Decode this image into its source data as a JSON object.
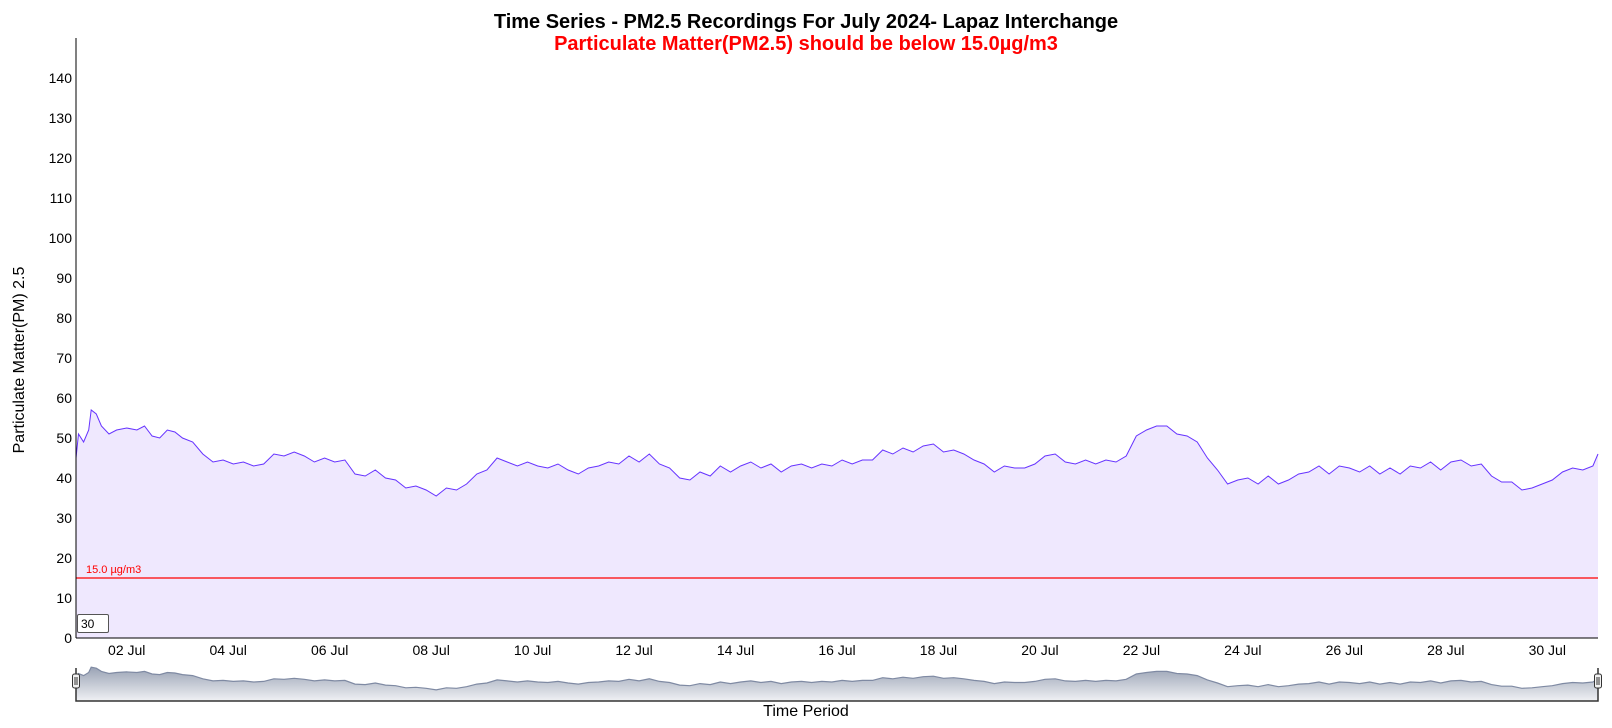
{
  "chart_data": {
    "type": "area",
    "title": "Time Series - PM2.5 Recordings For July 2024- Lapaz Interchange",
    "subtitle": "Particulate Matter(PM2.5) should be below 15.0µg/m3",
    "xlabel": "Time Period",
    "ylabel": "Particulate Matter(PM) 2.5",
    "ylim": [
      0,
      150
    ],
    "y_ticks": [
      "0",
      "10",
      "20",
      "30",
      "40",
      "50",
      "60",
      "70",
      "80",
      "90",
      "100",
      "110",
      "120",
      "130",
      "140"
    ],
    "x_range_days": [
      1,
      31
    ],
    "x_ticks": [
      {
        "day": 2,
        "label": "02 Jul"
      },
      {
        "day": 4,
        "label": "04 Jul"
      },
      {
        "day": 6,
        "label": "06 Jul"
      },
      {
        "day": 8,
        "label": "08 Jul"
      },
      {
        "day": 10,
        "label": "10 Jul"
      },
      {
        "day": 12,
        "label": "12 Jul"
      },
      {
        "day": 14,
        "label": "14 Jul"
      },
      {
        "day": 16,
        "label": "16 Jul"
      },
      {
        "day": 18,
        "label": "18 Jul"
      },
      {
        "day": 20,
        "label": "20 Jul"
      },
      {
        "day": 22,
        "label": "22 Jul"
      },
      {
        "day": 24,
        "label": "24 Jul"
      },
      {
        "day": 26,
        "label": "26 Jul"
      },
      {
        "day": 28,
        "label": "28 Jul"
      },
      {
        "day": 30,
        "label": "30 Jul"
      }
    ],
    "threshold": {
      "value": 15.0,
      "label": "15.0 µg/m3",
      "color": "#ff0000"
    },
    "series": [
      {
        "color": "#6633ff",
        "fill": "#efe8fe",
        "points": [
          [
            1.0,
            45
          ],
          [
            1.05,
            51
          ],
          [
            1.15,
            49
          ],
          [
            1.25,
            52
          ],
          [
            1.3,
            57
          ],
          [
            1.4,
            56
          ],
          [
            1.5,
            53
          ],
          [
            1.65,
            51
          ],
          [
            1.8,
            52
          ],
          [
            2.0,
            52.5
          ],
          [
            2.2,
            52
          ],
          [
            2.35,
            53
          ],
          [
            2.5,
            50.5
          ],
          [
            2.65,
            50
          ],
          [
            2.8,
            52
          ],
          [
            2.95,
            51.5
          ],
          [
            3.1,
            50
          ],
          [
            3.3,
            49
          ],
          [
            3.5,
            46
          ],
          [
            3.7,
            44
          ],
          [
            3.9,
            44.5
          ],
          [
            4.1,
            43.5
          ],
          [
            4.3,
            44
          ],
          [
            4.5,
            43
          ],
          [
            4.7,
            43.5
          ],
          [
            4.9,
            46
          ],
          [
            5.1,
            45.5
          ],
          [
            5.3,
            46.5
          ],
          [
            5.5,
            45.5
          ],
          [
            5.7,
            44
          ],
          [
            5.9,
            45
          ],
          [
            6.1,
            44
          ],
          [
            6.3,
            44.5
          ],
          [
            6.5,
            41
          ],
          [
            6.7,
            40.5
          ],
          [
            6.9,
            42
          ],
          [
            7.1,
            40
          ],
          [
            7.3,
            39.5
          ],
          [
            7.5,
            37.5
          ],
          [
            7.7,
            38
          ],
          [
            7.9,
            37
          ],
          [
            8.1,
            35.5
          ],
          [
            8.3,
            37.5
          ],
          [
            8.5,
            37
          ],
          [
            8.7,
            38.5
          ],
          [
            8.9,
            41
          ],
          [
            9.1,
            42
          ],
          [
            9.3,
            45
          ],
          [
            9.5,
            44
          ],
          [
            9.7,
            43
          ],
          [
            9.9,
            44
          ],
          [
            10.1,
            43
          ],
          [
            10.3,
            42.5
          ],
          [
            10.5,
            43.5
          ],
          [
            10.7,
            42
          ],
          [
            10.9,
            41
          ],
          [
            11.1,
            42.5
          ],
          [
            11.3,
            43
          ],
          [
            11.5,
            44
          ],
          [
            11.7,
            43.5
          ],
          [
            11.9,
            45.5
          ],
          [
            12.1,
            44
          ],
          [
            12.3,
            46
          ],
          [
            12.5,
            43.5
          ],
          [
            12.7,
            42.5
          ],
          [
            12.9,
            40
          ],
          [
            13.1,
            39.5
          ],
          [
            13.3,
            41.5
          ],
          [
            13.5,
            40.5
          ],
          [
            13.7,
            43
          ],
          [
            13.9,
            41.5
          ],
          [
            14.1,
            43
          ],
          [
            14.3,
            44
          ],
          [
            14.5,
            42.5
          ],
          [
            14.7,
            43.5
          ],
          [
            14.9,
            41.5
          ],
          [
            15.1,
            43
          ],
          [
            15.3,
            43.5
          ],
          [
            15.5,
            42.5
          ],
          [
            15.7,
            43.5
          ],
          [
            15.9,
            43
          ],
          [
            16.1,
            44.5
          ],
          [
            16.3,
            43.5
          ],
          [
            16.5,
            44.5
          ],
          [
            16.7,
            44.5
          ],
          [
            16.9,
            47
          ],
          [
            17.1,
            46
          ],
          [
            17.3,
            47.5
          ],
          [
            17.5,
            46.5
          ],
          [
            17.7,
            48
          ],
          [
            17.9,
            48.5
          ],
          [
            18.1,
            46.5
          ],
          [
            18.3,
            47
          ],
          [
            18.5,
            46
          ],
          [
            18.7,
            44.5
          ],
          [
            18.9,
            43.5
          ],
          [
            19.1,
            41.5
          ],
          [
            19.3,
            43
          ],
          [
            19.5,
            42.5
          ],
          [
            19.7,
            42.5
          ],
          [
            19.9,
            43.5
          ],
          [
            20.1,
            45.5
          ],
          [
            20.3,
            46
          ],
          [
            20.5,
            44
          ],
          [
            20.7,
            43.5
          ],
          [
            20.9,
            44.5
          ],
          [
            21.1,
            43.5
          ],
          [
            21.3,
            44.5
          ],
          [
            21.5,
            44
          ],
          [
            21.7,
            45.5
          ],
          [
            21.9,
            50.5
          ],
          [
            22.1,
            52
          ],
          [
            22.3,
            53
          ],
          [
            22.5,
            53
          ],
          [
            22.7,
            51
          ],
          [
            22.9,
            50.5
          ],
          [
            23.1,
            49
          ],
          [
            23.3,
            45
          ],
          [
            23.5,
            42
          ],
          [
            23.7,
            38.5
          ],
          [
            23.9,
            39.5
          ],
          [
            24.1,
            40
          ],
          [
            24.3,
            38.5
          ],
          [
            24.5,
            40.5
          ],
          [
            24.7,
            38.5
          ],
          [
            24.9,
            39.5
          ],
          [
            25.1,
            41
          ],
          [
            25.3,
            41.5
          ],
          [
            25.5,
            43
          ],
          [
            25.7,
            41
          ],
          [
            25.9,
            43
          ],
          [
            26.1,
            42.5
          ],
          [
            26.3,
            41.5
          ],
          [
            26.5,
            43
          ],
          [
            26.7,
            41
          ],
          [
            26.9,
            42.5
          ],
          [
            27.1,
            41
          ],
          [
            27.3,
            43
          ],
          [
            27.5,
            42.5
          ],
          [
            27.7,
            44
          ],
          [
            27.9,
            42
          ],
          [
            28.1,
            44
          ],
          [
            28.3,
            44.5
          ],
          [
            28.5,
            43
          ],
          [
            28.7,
            43.5
          ],
          [
            28.9,
            40.5
          ],
          [
            29.1,
            39
          ],
          [
            29.3,
            39
          ],
          [
            29.5,
            37
          ],
          [
            29.7,
            37.5
          ],
          [
            29.9,
            38.5
          ],
          [
            30.1,
            39.5
          ],
          [
            30.3,
            41.5
          ],
          [
            30.5,
            42.5
          ],
          [
            30.7,
            42
          ],
          [
            30.9,
            43
          ],
          [
            31.0,
            46
          ]
        ]
      }
    ],
    "navigator": {
      "fill_top": "#9aa3b5",
      "fill_bottom": "#f0f1f4",
      "line": "#7f8aa3"
    },
    "grid": false,
    "legend": "none"
  },
  "controls": {
    "period_value": "30"
  }
}
